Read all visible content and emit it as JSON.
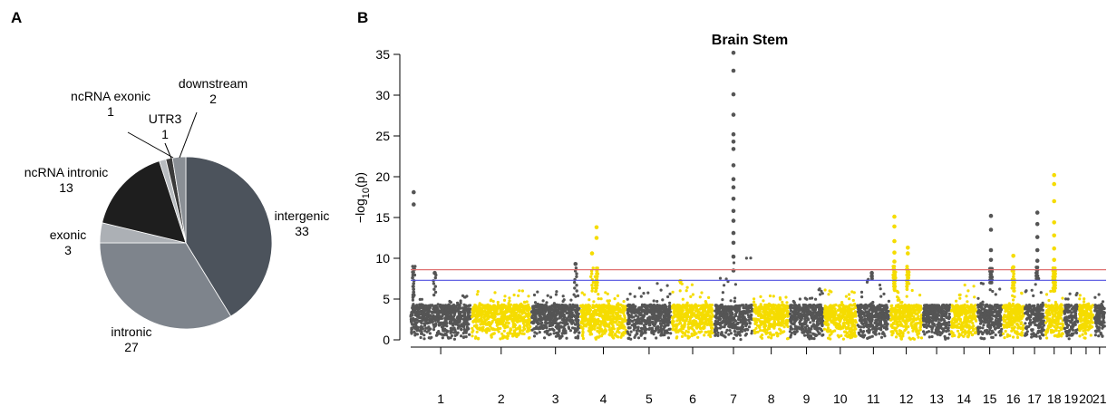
{
  "panels": {
    "a_label": "A",
    "b_label": "B"
  },
  "chart_data": [
    {
      "type": "pie",
      "slices": [
        {
          "label": "intergenic",
          "value": 33,
          "color": "#4c535c"
        },
        {
          "label": "intronic",
          "value": 27,
          "color": "#7e848c"
        },
        {
          "label": "exonic",
          "value": 3,
          "color": "#acb0b5"
        },
        {
          "label": "ncRNA intronic",
          "value": 13,
          "color": "#1e1e1e"
        },
        {
          "label": "ncRNA exonic",
          "value": 1,
          "color": "#b8bcc0"
        },
        {
          "label": "UTR3",
          "value": 1,
          "color": "#3a3a3a"
        },
        {
          "label": "downstream",
          "value": 2,
          "color": "#8a8f95"
        }
      ]
    },
    {
      "type": "scatter",
      "subtype": "manhattan",
      "title": "Brain Stem",
      "ylabel": "-log10(p)",
      "ylabel_main": "−log",
      "ylabel_sub": "10",
      "ylabel_tail": "(p)",
      "ylim": [
        0,
        35
      ],
      "yticks": [
        0,
        5,
        10,
        15,
        20,
        25,
        30,
        35
      ],
      "thresholds": [
        {
          "value": 8.6,
          "color": "#e07070"
        },
        {
          "value": 7.3,
          "color": "#5050e0"
        }
      ],
      "colors": [
        "#555555",
        "#f5dc00"
      ],
      "chromosomes": [
        {
          "label": "1",
          "rel_len": 1.0,
          "base_max": 5.5,
          "peaks": [
            [
              0.05,
              18.1
            ],
            [
              0.05,
              16.6
            ],
            [
              0.4,
              8.2
            ]
          ]
        },
        {
          "label": "2",
          "rel_len": 0.97,
          "base_max": 6.2,
          "peaks": []
        },
        {
          "label": "3",
          "rel_len": 0.8,
          "base_max": 6.0,
          "peaks": [
            [
              0.92,
              9.3
            ]
          ]
        },
        {
          "label": "4",
          "rel_len": 0.76,
          "base_max": 6.0,
          "peaks": [
            [
              0.25,
              10.6
            ],
            [
              0.35,
              13.8
            ],
            [
              0.35,
              12.5
            ]
          ]
        },
        {
          "label": "5",
          "rel_len": 0.73,
          "base_max": 7.2,
          "peaks": []
        },
        {
          "label": "6",
          "rel_len": 0.69,
          "base_max": 7.0,
          "peaks": [
            [
              0.2,
              7.2
            ]
          ]
        },
        {
          "label": "7",
          "rel_len": 0.64,
          "base_max": 10.4,
          "peaks": [
            [
              0.5,
              35.2
            ],
            [
              0.5,
              33.0
            ],
            [
              0.5,
              30.1
            ],
            [
              0.5,
              27.6
            ],
            [
              0.5,
              25.2
            ],
            [
              0.5,
              24.3
            ],
            [
              0.5,
              23.4
            ],
            [
              0.5,
              21.4
            ],
            [
              0.5,
              19.7
            ],
            [
              0.5,
              18.7
            ],
            [
              0.5,
              17.3
            ],
            [
              0.5,
              15.8
            ],
            [
              0.5,
              14.6
            ],
            [
              0.5,
              13.1
            ],
            [
              0.5,
              11.9
            ],
            [
              0.5,
              10.2
            ],
            [
              0.5,
              8.5
            ]
          ]
        },
        {
          "label": "8",
          "rel_len": 0.59,
          "base_max": 5.5,
          "peaks": []
        },
        {
          "label": "9",
          "rel_len": 0.56,
          "base_max": 6.3,
          "peaks": []
        },
        {
          "label": "10",
          "rel_len": 0.54,
          "base_max": 6.3,
          "peaks": []
        },
        {
          "label": "11",
          "rel_len": 0.54,
          "base_max": 7.5,
          "peaks": [
            [
              0.45,
              8.2
            ],
            [
              0.45,
              7.8
            ]
          ]
        },
        {
          "label": "12",
          "rel_len": 0.53,
          "base_max": 6.2,
          "peaks": [
            [
              0.12,
              15.1
            ],
            [
              0.12,
              13.9
            ],
            [
              0.12,
              12.1
            ],
            [
              0.12,
              10.7
            ],
            [
              0.12,
              9.6
            ],
            [
              0.55,
              11.3
            ],
            [
              0.55,
              10.6
            ],
            [
              0.55,
              8.5
            ]
          ]
        },
        {
          "label": "13",
          "rel_len": 0.46,
          "base_max": 4.2,
          "peaks": []
        },
        {
          "label": "14",
          "rel_len": 0.43,
          "base_max": 6.8,
          "peaks": []
        },
        {
          "label": "15",
          "rel_len": 0.41,
          "base_max": 7.0,
          "peaks": [
            [
              0.55,
              15.2
            ],
            [
              0.55,
              13.5
            ],
            [
              0.55,
              11.0
            ],
            [
              0.55,
              9.8
            ]
          ]
        },
        {
          "label": "16",
          "rel_len": 0.36,
          "base_max": 6.0,
          "peaks": [
            [
              0.5,
              10.3
            ],
            [
              0.5,
              8.9
            ]
          ]
        },
        {
          "label": "17",
          "rel_len": 0.33,
          "base_max": 7.5,
          "peaks": [
            [
              0.65,
              15.6
            ],
            [
              0.65,
              14.2
            ],
            [
              0.65,
              12.6
            ],
            [
              0.65,
              11.0
            ],
            [
              0.65,
              9.7
            ]
          ]
        },
        {
          "label": "18",
          "rel_len": 0.31,
          "base_max": 6.0,
          "peaks": [
            [
              0.5,
              20.2
            ],
            [
              0.5,
              19.1
            ],
            [
              0.5,
              17.0
            ],
            [
              0.5,
              14.4
            ],
            [
              0.5,
              12.8
            ],
            [
              0.5,
              11.2
            ],
            [
              0.5,
              9.8
            ]
          ]
        },
        {
          "label": "19",
          "rel_len": 0.24,
          "base_max": 6.0,
          "peaks": []
        },
        {
          "label": "20",
          "rel_len": 0.25,
          "base_max": 5.5,
          "peaks": []
        },
        {
          "label": "21",
          "rel_len": 0.19,
          "base_max": 6.0,
          "peaks": []
        }
      ]
    }
  ]
}
